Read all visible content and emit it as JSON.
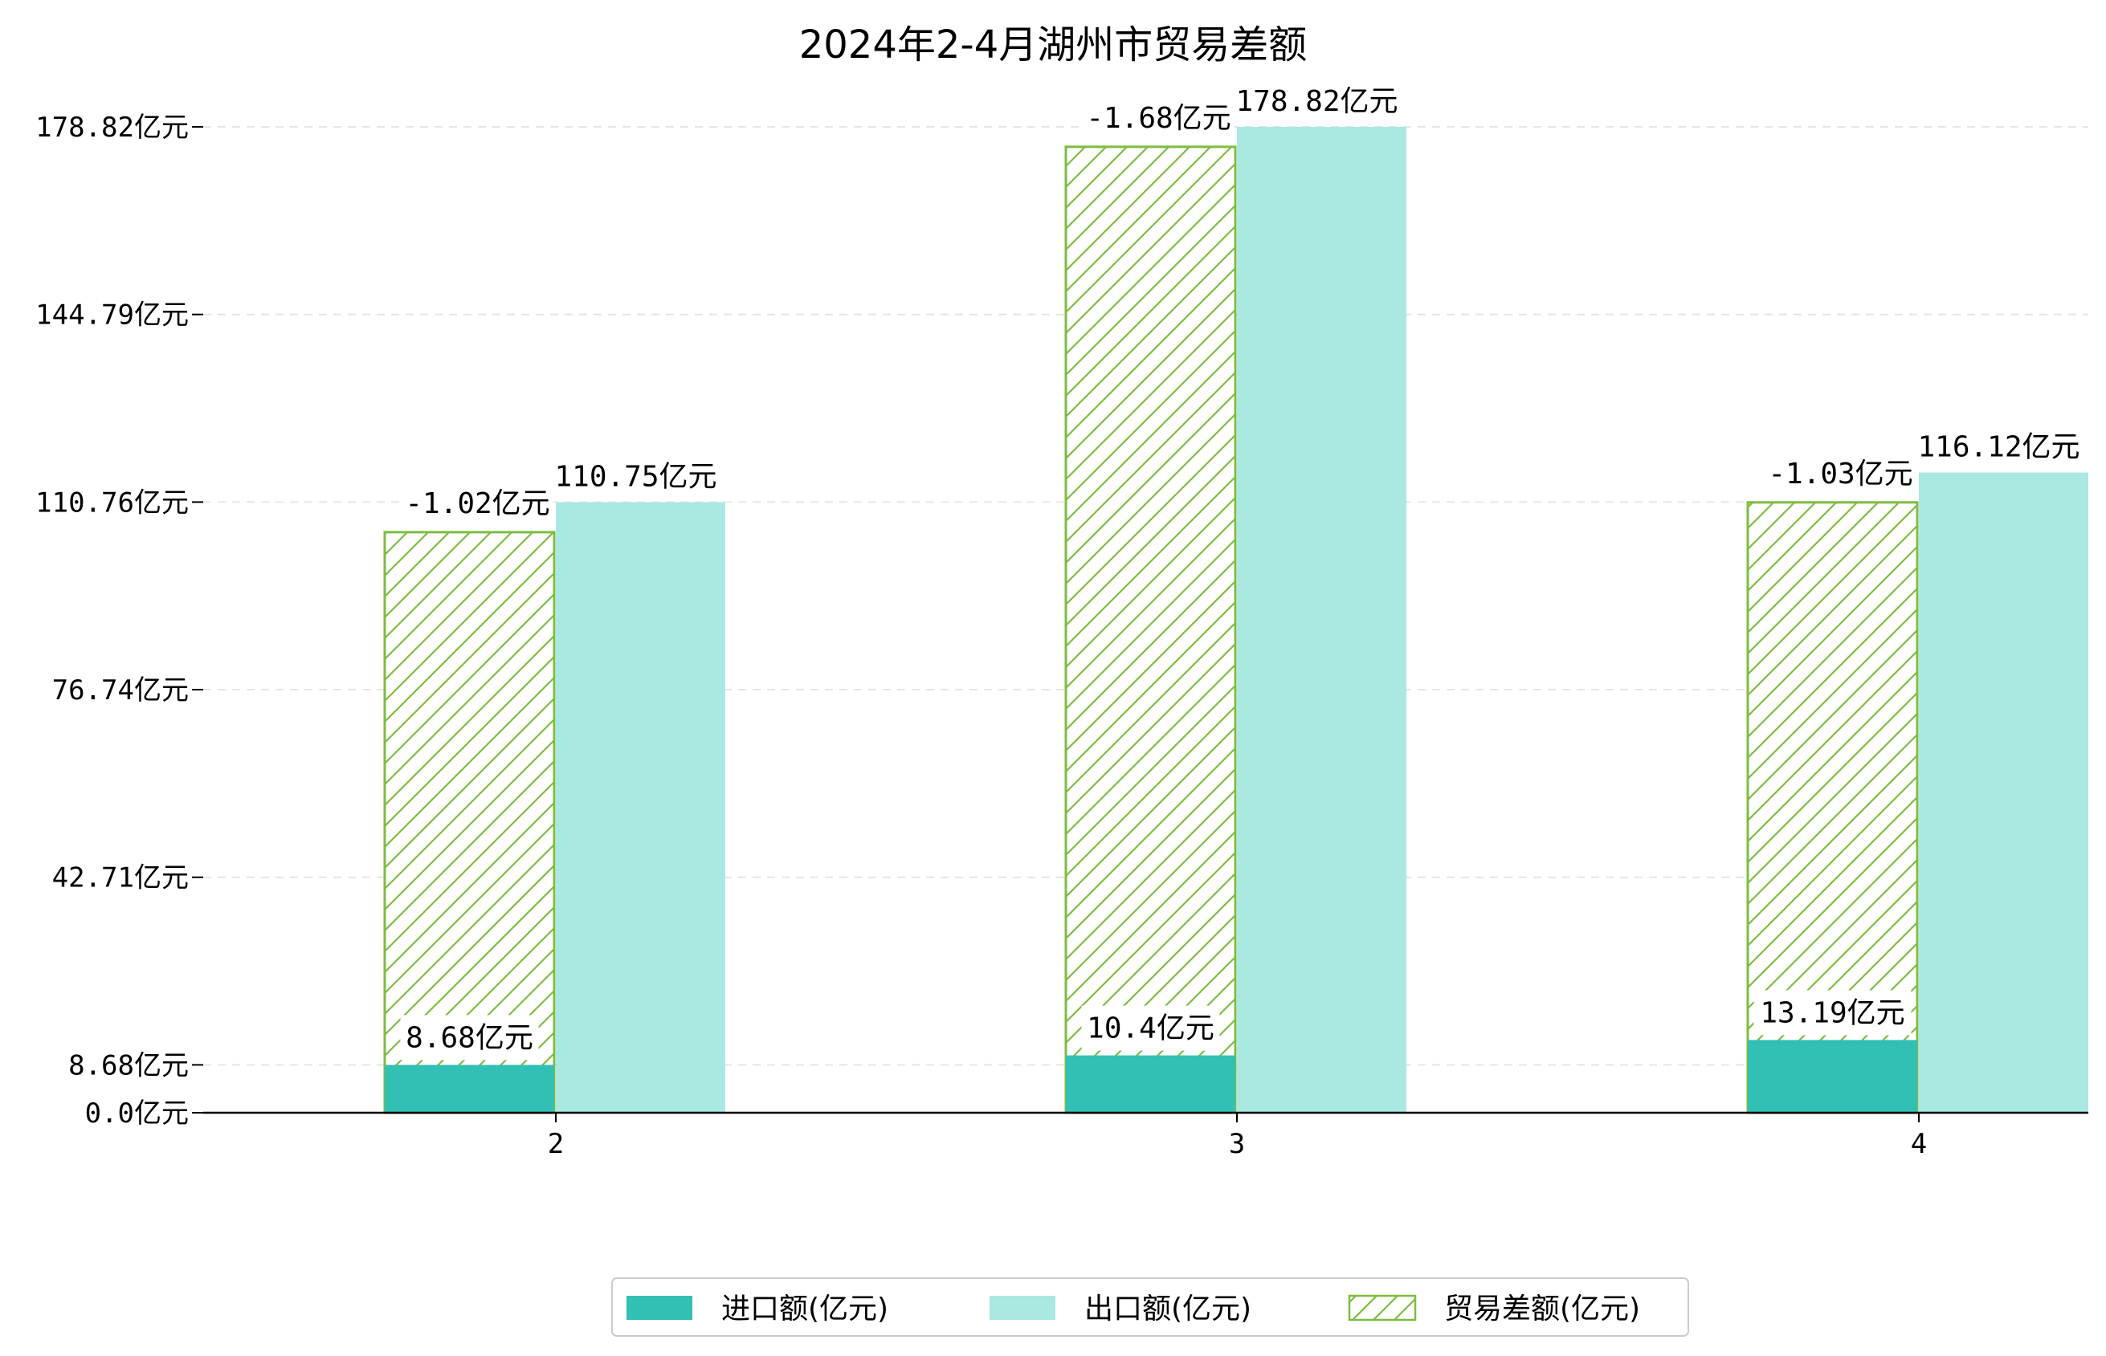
{
  "chart_data": {
    "type": "bar",
    "title": "2024年2-4月湖州市贸易差额",
    "xlabel": "",
    "ylabel": "",
    "categories": [
      "2",
      "3",
      "4"
    ],
    "y_ticks": [
      0.0,
      8.68,
      42.71,
      76.74,
      110.76,
      144.79,
      178.82
    ],
    "y_tick_labels": [
      "0.0亿元",
      "8.68亿元",
      "42.71亿元",
      "76.74亿元",
      "110.76亿元",
      "144.79亿元",
      "178.82亿元"
    ],
    "ylim": [
      0,
      181.5
    ],
    "grid": "horizontal dashed",
    "legend_position": "bottom-center",
    "series": [
      {
        "name": "进口额(亿元)",
        "values": [
          8.68,
          10.4,
          13.19
        ],
        "labels": [
          "8.68亿元",
          "10.4亿元",
          "13.19亿元"
        ],
        "color": "#32c0b4",
        "style": "solid"
      },
      {
        "name": "出口额(亿元)",
        "values": [
          110.75,
          178.82,
          116.12
        ],
        "labels": [
          "110.75亿元",
          "178.82亿元",
          "116.12亿元"
        ],
        "color": "#aae8e2",
        "style": "solid"
      },
      {
        "name": "贸易差额(亿元)",
        "values": [
          -1.02,
          -1.68,
          -1.03
        ],
        "labels": [
          "-1.02亿元",
          "-1.68亿元",
          "-1.03亿元"
        ],
        "color": "#7dbd41",
        "style": "hatched",
        "bar_top_values": [
          105.3,
          175.2,
          110.7
        ]
      }
    ]
  }
}
